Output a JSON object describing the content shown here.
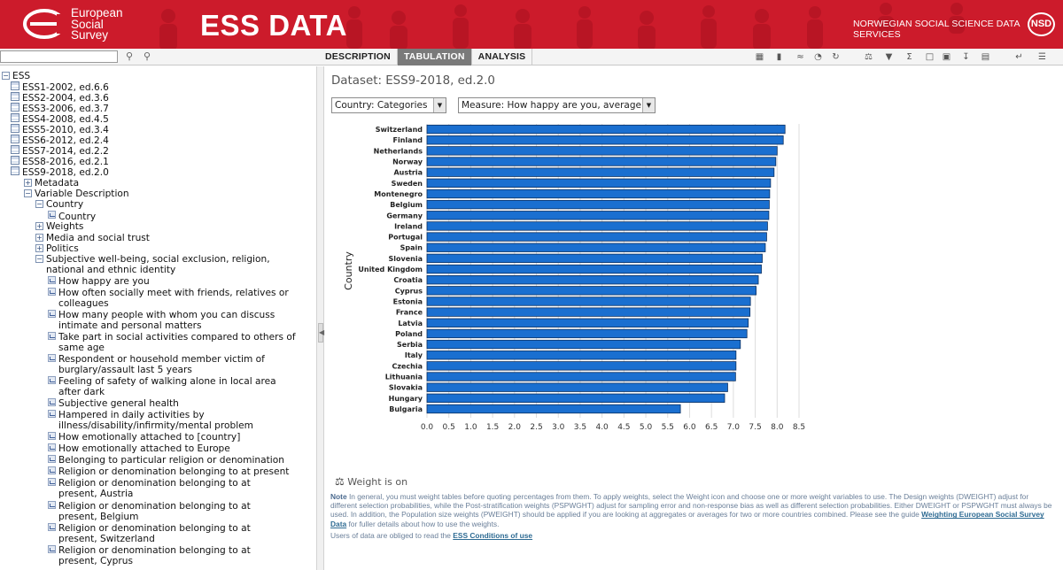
{
  "header": {
    "logo_lines": [
      "European",
      "Social",
      "Survey"
    ],
    "app_title": "ESS DATA",
    "org_name": "NORWEGIAN SOCIAL SCIENCE DATA SERVICES",
    "org_logo": "NSD",
    "brand_color": "#cc1b2b"
  },
  "toolbar": {
    "search_value": "",
    "tabs": [
      "DESCRIPTION",
      "TABULATION",
      "ANALYSIS"
    ],
    "active_tab": "TABULATION"
  },
  "tree": {
    "root": "ESS",
    "datasets": [
      "ESS1-2002, ed.6.6",
      "ESS2-2004, ed.3.6",
      "ESS3-2006, ed.3.7",
      "ESS4-2008, ed.4.5",
      "ESS5-2010, ed.3.4",
      "ESS6-2012, ed.2.4",
      "ESS7-2014, ed.2.2",
      "ESS8-2016, ed.2.1",
      "ESS9-2018, ed.2.0"
    ],
    "metadata": "Metadata",
    "variable_description": "Variable Description",
    "country_group": "Country",
    "country_var": "Country",
    "weights": "Weights",
    "media": "Media and social trust",
    "politics": "Politics",
    "wellbeing": "Subjective well-being, social exclusion, religion, national and ethnic identity",
    "variables": [
      "How happy are you",
      "How often socially meet with friends, relatives or colleagues",
      "How many people with whom you can discuss intimate and personal matters",
      "Take part in social activities compared to others of same age",
      "Respondent or household member victim of burglary/assault last 5 years",
      "Feeling of safety of walking alone in local area after dark",
      "Subjective general health",
      "Hampered in daily activities by illness/disability/infirmity/mental problem",
      "How emotionally attached to [country]",
      "How emotionally attached to Europe",
      "Belonging to particular religion or denomination",
      "Religion or denomination belonging to at present",
      "Religion or denomination belonging to at present, Austria",
      "Religion or denomination belonging to at present, Belgium",
      "Religion or denomination belonging to at present, Switzerland",
      "Religion or denomination belonging to at present, Cyprus"
    ]
  },
  "main": {
    "dataset_title": "Dataset: ESS9-2018, ed.2.0",
    "row_select": "Country: Categories",
    "measure_select": "Measure: How happy are you, average",
    "weight_status": "Weight is on",
    "note_label": "Note",
    "note_text": " In general, you must weight tables before quoting percentages from them. To apply weights, select the Weight icon and choose one or more weight variables to use. The Design weights (DWEIGHT) adjust for different selection probabilities, while the Post-stratification weights (PSPWGHT) adjust for sampling error and non-response bias as well as different selection probabilities. Either DWEIGHT or PSPWGHT must always be used. In addition, the Population size weights (PWEIGHT) should be applied if you are looking at aggregates or averages for two or more countries combined. Please see the guide ",
    "note_link": "Weighting European Social Survey Data",
    "note_tail": " for fuller details about how to use the weights.",
    "conditions_text": "Users of data are obliged to read the ",
    "conditions_link": "ESS Conditions of use"
  },
  "chart_data": {
    "type": "bar",
    "orientation": "horizontal",
    "ylabel": "Country",
    "categories": [
      "Switzerland",
      "Finland",
      "Netherlands",
      "Norway",
      "Austria",
      "Sweden",
      "Montenegro",
      "Belgium",
      "Germany",
      "Ireland",
      "Portugal",
      "Spain",
      "Slovenia",
      "United Kingdom",
      "Croatia",
      "Cyprus",
      "Estonia",
      "France",
      "Latvia",
      "Poland",
      "Serbia",
      "Italy",
      "Czechia",
      "Lithuania",
      "Slovakia",
      "Hungary",
      "Bulgaria"
    ],
    "values": [
      8.18,
      8.14,
      8.0,
      7.97,
      7.93,
      7.85,
      7.83,
      7.82,
      7.81,
      7.78,
      7.76,
      7.73,
      7.66,
      7.64,
      7.57,
      7.52,
      7.39,
      7.38,
      7.34,
      7.31,
      7.16,
      7.06,
      7.06,
      7.05,
      6.87,
      6.8,
      5.79
    ],
    "xticks": [
      "0.0",
      "0.5",
      "1.0",
      "1.5",
      "2.0",
      "2.5",
      "3.0",
      "3.5",
      "4.0",
      "4.5",
      "5.0",
      "5.5",
      "6.0",
      "6.5",
      "7.0",
      "7.5",
      "8.0",
      "8.5"
    ],
    "xlim": [
      0,
      8.5
    ],
    "bar_color": "#1a6fd0"
  }
}
